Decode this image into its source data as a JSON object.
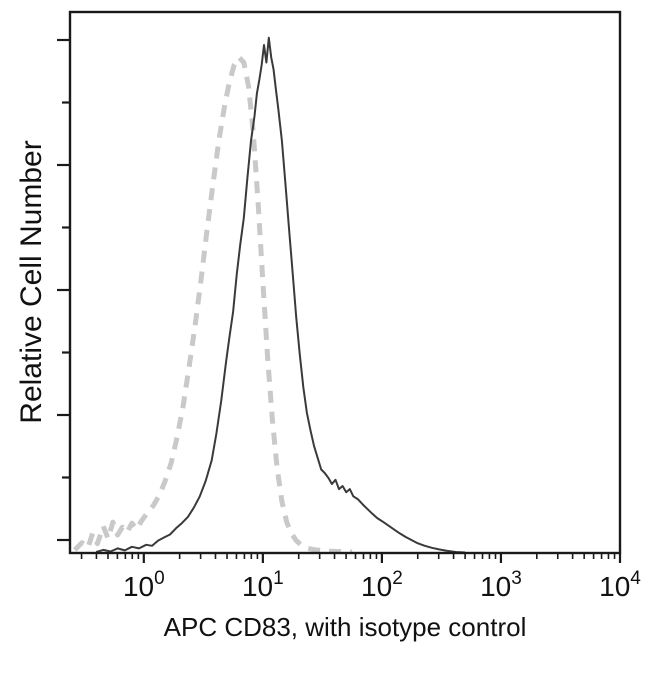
{
  "figure": {
    "background": "#ffffff"
  },
  "chart_data": {
    "type": "line",
    "subtype": "flow-cytometry-histogram",
    "title": "",
    "xlabel": "APC CD83, with isotype control",
    "ylabel": "Relative Cell Number",
    "x_scale": "log10",
    "x_range_log": [
      -0.62,
      4
    ],
    "y_range": [
      0,
      1.05
    ],
    "grid": false,
    "legend": "none",
    "frame_color": "#1a1a1a",
    "tick_color": "#1a1a1a",
    "x_ticks": [
      {
        "log": 0,
        "base": "10",
        "exp": "0"
      },
      {
        "log": 1,
        "base": "10",
        "exp": "1"
      },
      {
        "log": 2,
        "base": "10",
        "exp": "2"
      },
      {
        "log": 3,
        "base": "10",
        "exp": "3"
      },
      {
        "log": 4,
        "base": "10",
        "exp": "4"
      }
    ],
    "y_tick_count": 9,
    "series": [
      {
        "name": "Isotype control",
        "style": "dashed",
        "color": "#c9c9c9",
        "width": 5,
        "dash": [
          12,
          9
        ],
        "points_logx_y": [
          [
            -0.58,
            0.006
          ],
          [
            -0.52,
            0.02
          ],
          [
            -0.47,
            0.01
          ],
          [
            -0.43,
            0.038
          ],
          [
            -0.39,
            0.018
          ],
          [
            -0.34,
            0.052
          ],
          [
            -0.3,
            0.028
          ],
          [
            -0.26,
            0.06
          ],
          [
            -0.22,
            0.035
          ],
          [
            -0.18,
            0.05
          ],
          [
            -0.14,
            0.04
          ],
          [
            -0.1,
            0.058
          ],
          [
            -0.06,
            0.046
          ],
          [
            -0.02,
            0.062
          ],
          [
            0.03,
            0.078
          ],
          [
            0.08,
            0.092
          ],
          [
            0.13,
            0.112
          ],
          [
            0.18,
            0.14
          ],
          [
            0.23,
            0.175
          ],
          [
            0.28,
            0.225
          ],
          [
            0.33,
            0.285
          ],
          [
            0.38,
            0.36
          ],
          [
            0.43,
            0.44
          ],
          [
            0.48,
            0.53
          ],
          [
            0.53,
            0.625
          ],
          [
            0.58,
            0.715
          ],
          [
            0.63,
            0.8
          ],
          [
            0.68,
            0.87
          ],
          [
            0.72,
            0.915
          ],
          [
            0.76,
            0.948
          ],
          [
            0.8,
            0.962
          ],
          [
            0.84,
            0.952
          ],
          [
            0.88,
            0.905
          ],
          [
            0.92,
            0.815
          ],
          [
            0.96,
            0.68
          ],
          [
            1.0,
            0.525
          ],
          [
            1.04,
            0.38
          ],
          [
            1.08,
            0.258
          ],
          [
            1.12,
            0.165
          ],
          [
            1.16,
            0.1
          ],
          [
            1.2,
            0.06
          ],
          [
            1.24,
            0.038
          ],
          [
            1.28,
            0.024
          ],
          [
            1.33,
            0.014
          ],
          [
            1.38,
            0.009
          ],
          [
            1.44,
            0.006
          ],
          [
            1.52,
            0.004
          ],
          [
            1.62,
            0.003
          ],
          [
            1.75,
            0.002
          ]
        ]
      },
      {
        "name": "APC CD83",
        "style": "solid",
        "color": "#3a3a3a",
        "width": 2,
        "dash": null,
        "points_logx_y": [
          [
            -0.4,
            0.002
          ],
          [
            -0.34,
            0.006
          ],
          [
            -0.28,
            0.003
          ],
          [
            -0.22,
            0.009
          ],
          [
            -0.16,
            0.005
          ],
          [
            -0.1,
            0.012
          ],
          [
            -0.04,
            0.009
          ],
          [
            0.02,
            0.016
          ],
          [
            0.07,
            0.014
          ],
          [
            0.12,
            0.024
          ],
          [
            0.17,
            0.03
          ],
          [
            0.22,
            0.036
          ],
          [
            0.27,
            0.048
          ],
          [
            0.32,
            0.058
          ],
          [
            0.37,
            0.07
          ],
          [
            0.42,
            0.088
          ],
          [
            0.47,
            0.11
          ],
          [
            0.52,
            0.14
          ],
          [
            0.57,
            0.18
          ],
          [
            0.61,
            0.232
          ],
          [
            0.65,
            0.295
          ],
          [
            0.69,
            0.37
          ],
          [
            0.72,
            0.42
          ],
          [
            0.75,
            0.468
          ],
          [
            0.78,
            0.54
          ],
          [
            0.81,
            0.598
          ],
          [
            0.84,
            0.65
          ],
          [
            0.87,
            0.728
          ],
          [
            0.9,
            0.8
          ],
          [
            0.93,
            0.848
          ],
          [
            0.95,
            0.892
          ],
          [
            0.97,
            0.918
          ],
          [
            0.99,
            0.948
          ],
          [
            1.01,
            0.986
          ],
          [
            1.03,
            0.952
          ],
          [
            1.05,
            1.0
          ],
          [
            1.07,
            0.962
          ],
          [
            1.09,
            0.938
          ],
          [
            1.11,
            0.898
          ],
          [
            1.13,
            0.862
          ],
          [
            1.16,
            0.8
          ],
          [
            1.19,
            0.715
          ],
          [
            1.22,
            0.63
          ],
          [
            1.25,
            0.545
          ],
          [
            1.28,
            0.458
          ],
          [
            1.31,
            0.385
          ],
          [
            1.34,
            0.322
          ],
          [
            1.37,
            0.272
          ],
          [
            1.4,
            0.238
          ],
          [
            1.43,
            0.208
          ],
          [
            1.46,
            0.185
          ],
          [
            1.49,
            0.162
          ],
          [
            1.52,
            0.155
          ],
          [
            1.55,
            0.146
          ],
          [
            1.58,
            0.134
          ],
          [
            1.61,
            0.142
          ],
          [
            1.64,
            0.124
          ],
          [
            1.67,
            0.13
          ],
          [
            1.7,
            0.118
          ],
          [
            1.73,
            0.124
          ],
          [
            1.76,
            0.11
          ],
          [
            1.8,
            0.104
          ],
          [
            1.84,
            0.094
          ],
          [
            1.88,
            0.085
          ],
          [
            1.92,
            0.076
          ],
          [
            1.96,
            0.068
          ],
          [
            2.0,
            0.062
          ],
          [
            2.05,
            0.054
          ],
          [
            2.1,
            0.046
          ],
          [
            2.15,
            0.038
          ],
          [
            2.2,
            0.031
          ],
          [
            2.25,
            0.025
          ],
          [
            2.3,
            0.019
          ],
          [
            2.36,
            0.014
          ],
          [
            2.42,
            0.01
          ],
          [
            2.48,
            0.007
          ],
          [
            2.55,
            0.004
          ],
          [
            2.62,
            0.002
          ],
          [
            2.7,
            0.001
          ]
        ]
      }
    ]
  }
}
